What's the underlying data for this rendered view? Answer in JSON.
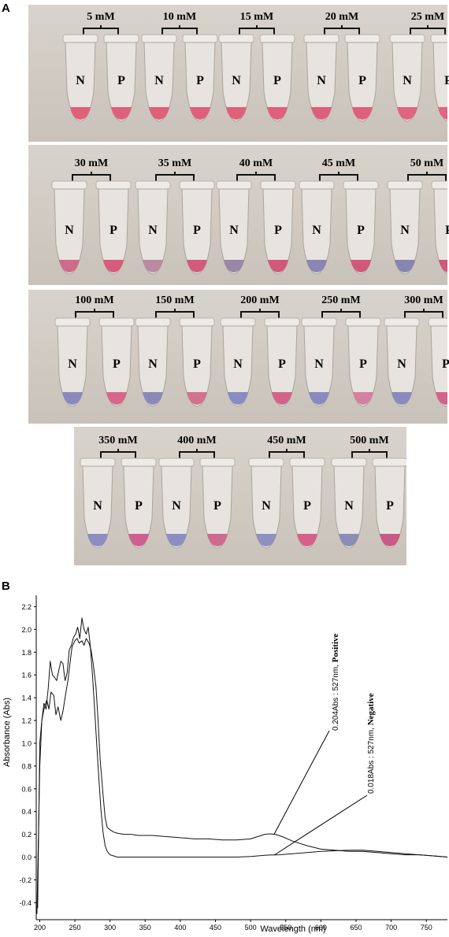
{
  "panel_a": {
    "letter": "A",
    "tube_labels": {
      "negative": "N",
      "positive": "P"
    },
    "rows": [
      {
        "concentrations": [
          "5 mM",
          "10 mM",
          "15 mM",
          "20 mM",
          "25 mM"
        ],
        "negative_color": [
          "#e0607c",
          "#e0607c",
          "#e0607c",
          "#de5f7b",
          "#df6580"
        ],
        "positive_color": [
          "#e0607c",
          "#e0607c",
          "#e0607c",
          "#de5f7b",
          "#df6580"
        ]
      },
      {
        "concentrations": [
          "30 mM",
          "35 mM",
          "40 mM",
          "45 mM",
          "50 mM"
        ],
        "negative_color": [
          "#cf6a8a",
          "#b98aa0",
          "#9a86a6",
          "#8a85b3",
          "#8686ae"
        ],
        "positive_color": [
          "#d85a7c",
          "#d45a7c",
          "#d2587a",
          "#d2587a",
          "#d0587a"
        ]
      },
      {
        "concentrations": [
          "100 mM",
          "150 mM",
          "200 mM",
          "250 mM",
          "300 mM"
        ],
        "negative_color": [
          "#8a89bd",
          "#8a8ab8",
          "#8a8bc0",
          "#8b89bd",
          "#8b89bd"
        ],
        "positive_color": [
          "#d8668a",
          "#d2728c",
          "#d2648a",
          "#d77fa0",
          "#d2648a"
        ]
      },
      {
        "concentrations": [
          "350 mM",
          "400 mM",
          "450 mM",
          "500 mM"
        ],
        "negative_color": [
          "#8e8cc0",
          "#8b8ec0",
          "#9090c0",
          "#8c8cb6"
        ],
        "positive_color": [
          "#cf5f90",
          "#d06a90",
          "#d6608a",
          "#c85a85"
        ]
      }
    ]
  },
  "panel_b": {
    "letter": "B",
    "chart_data": {
      "type": "line",
      "title": "",
      "xlabel": "Wavelength (nm)",
      "ylabel": "Absorbance (Abs)",
      "xlim": [
        195,
        780
      ],
      "ylim": [
        -0.55,
        2.3
      ],
      "x_ticks": [
        200,
        250,
        300,
        350,
        400,
        450,
        500,
        550,
        600,
        650,
        700,
        750
      ],
      "y_ticks": [
        2.2,
        2.0,
        1.8,
        1.6,
        1.4,
        1.2,
        1.0,
        0.8,
        0.6,
        0.4,
        0.2,
        0.0,
        -0.2,
        -0.4
      ],
      "series": [
        {
          "x": [
            196,
            200,
            203,
            206,
            210,
            213,
            216,
            220,
            223,
            226,
            230,
            233,
            236,
            240,
            243,
            246,
            250,
            253,
            256,
            260,
            263,
            266,
            270,
            273,
            276,
            280,
            283,
            286,
            290,
            293,
            296,
            300,
            305,
            310,
            320,
            330,
            340,
            350,
            360,
            380,
            400,
            420,
            440,
            460,
            480,
            500,
            510,
            520,
            527,
            535,
            545,
            560,
            580,
            600,
            620,
            640,
            660,
            680,
            700,
            720,
            740,
            760,
            780
          ],
          "y": [
            -0.5,
            0.8,
            1.2,
            1.3,
            1.38,
            1.3,
            1.45,
            1.42,
            1.25,
            1.32,
            1.2,
            1.28,
            1.4,
            1.55,
            1.7,
            1.85,
            1.9,
            1.92,
            1.88,
            1.9,
            1.86,
            1.92,
            1.88,
            1.82,
            1.7,
            1.5,
            1.2,
            0.85,
            0.55,
            0.35,
            0.26,
            0.24,
            0.22,
            0.21,
            0.2,
            0.2,
            0.19,
            0.19,
            0.19,
            0.18,
            0.17,
            0.16,
            0.16,
            0.15,
            0.15,
            0.16,
            0.18,
            0.2,
            0.204,
            0.2,
            0.18,
            0.14,
            0.1,
            0.07,
            0.06,
            0.05,
            0.05,
            0.04,
            0.03,
            0.02,
            0.02,
            0.01,
            0.0
          ]
        },
        {
          "x": [
            197,
            200,
            203,
            206,
            209,
            212,
            215,
            218,
            221,
            224,
            227,
            230,
            233,
            236,
            239,
            242,
            245,
            248,
            251,
            254,
            257,
            260,
            263,
            266,
            269,
            272,
            275,
            278,
            281,
            284,
            287,
            290,
            293,
            296,
            300,
            305,
            310,
            320,
            340,
            360,
            400,
            440,
            480,
            500,
            520,
            527,
            540,
            560,
            600,
            640,
            660,
            680,
            700,
            720,
            740,
            760,
            780
          ],
          "y": [
            -0.45,
            1.0,
            1.2,
            1.35,
            1.3,
            1.48,
            1.72,
            1.6,
            1.58,
            1.55,
            1.64,
            1.72,
            1.7,
            1.55,
            1.62,
            1.82,
            1.86,
            1.93,
            1.96,
            2.02,
            1.92,
            2.1,
            2.0,
            1.96,
            2.02,
            1.85,
            1.6,
            1.3,
            1.0,
            0.7,
            0.42,
            0.22,
            0.1,
            0.05,
            0.02,
            0.01,
            0.0,
            0.0,
            0.0,
            0.0,
            0.0,
            0.0,
            0.0,
            0.005,
            0.015,
            0.018,
            0.02,
            0.03,
            0.05,
            0.06,
            0.06,
            0.05,
            0.04,
            0.03,
            0.02,
            0.01,
            0.0
          ]
        }
      ],
      "annotations": [
        {
          "text_value": "0.204Abs : 527nm, ",
          "text_bold": "Positive",
          "x": 527,
          "y": 0.204
        },
        {
          "text_value": "0.018Abs : 527nm, ",
          "text_bold": "Negative",
          "x": 527,
          "y": 0.018
        }
      ]
    }
  }
}
